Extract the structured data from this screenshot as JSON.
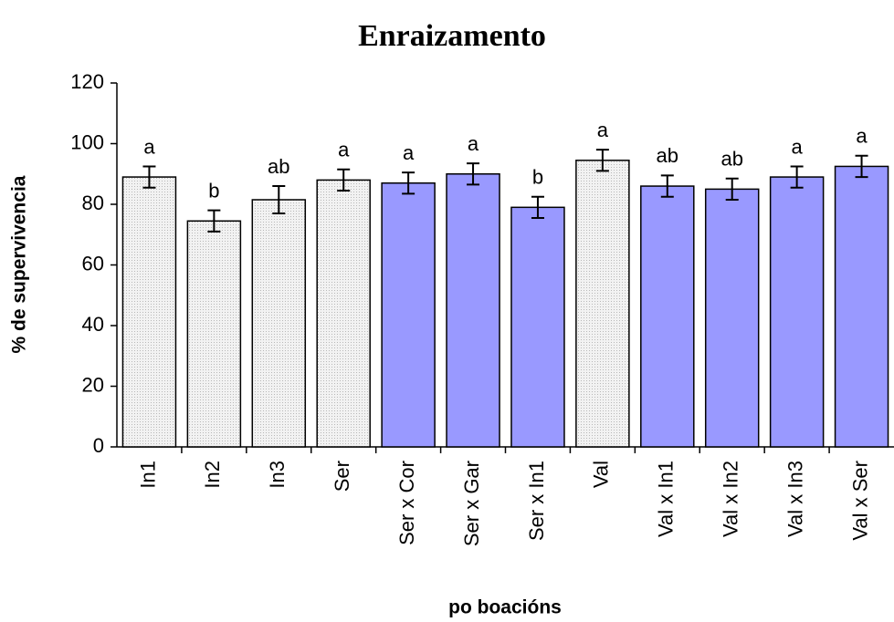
{
  "chart_data": {
    "type": "bar",
    "title": "Enraizamento",
    "x_label": "po boacións",
    "y_label": "% de supervivencia",
    "categories": [
      "In1",
      "In2",
      "In3",
      "Ser",
      "Ser x Cor",
      "Ser x Gar",
      "Ser x In1",
      "Val",
      "Val x In1",
      "Val x In2",
      "Val x In3",
      "Val x Ser"
    ],
    "values": [
      89,
      74.5,
      81.5,
      88,
      87,
      90,
      79,
      94.5,
      86,
      85,
      89,
      92.5
    ],
    "errors": [
      3.5,
      3.5,
      4.5,
      3.5,
      3.5,
      3.5,
      3.5,
      3.5,
      3.5,
      3.5,
      3.5,
      3.5
    ],
    "letters": [
      "a",
      "b",
      "ab",
      "a",
      "a",
      "a",
      "b",
      "a",
      "ab",
      "ab",
      "a",
      "a"
    ],
    "colors": [
      "#ebebeb",
      "#ebebeb",
      "#ebebeb",
      "#ebebeb",
      "#9999ff",
      "#9999ff",
      "#9999ff",
      "#ebebeb",
      "#9999ff",
      "#9999ff",
      "#9999ff",
      "#9999ff"
    ],
    "ylim": [
      0,
      120
    ],
    "yticks": [
      0,
      20,
      40,
      60,
      80,
      100,
      120
    ],
    "grid": false
  }
}
